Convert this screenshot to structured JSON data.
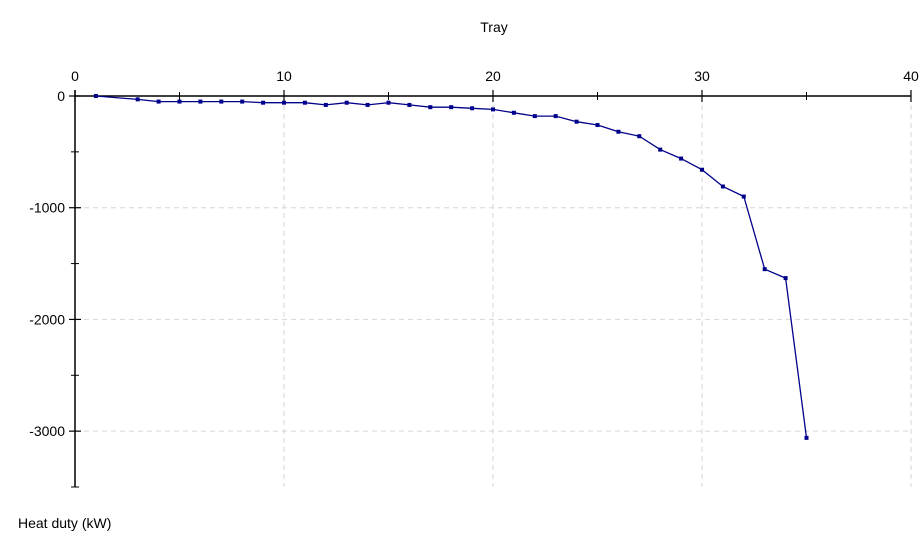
{
  "chart_data": {
    "type": "line",
    "xlabel": "Tray",
    "ylabel": "Heat duty (kW)",
    "xlim": [
      0,
      40
    ],
    "ylim": [
      -3500,
      0
    ],
    "x_ticks": [
      0,
      10,
      20,
      30,
      40
    ],
    "y_ticks": [
      0,
      -1000,
      -2000,
      -3000
    ],
    "x_axis_position": "top",
    "grid": true,
    "series": [
      {
        "color": "#00008B",
        "x": [
          1,
          3,
          4,
          5,
          6,
          7,
          8,
          9,
          10,
          11,
          12,
          13,
          14,
          15,
          16,
          17,
          18,
          19,
          20,
          21,
          22,
          23,
          24,
          25,
          26,
          27,
          28,
          29,
          30,
          31,
          32,
          33,
          34,
          35
        ],
        "y": [
          0,
          -30,
          -50,
          -50,
          -50,
          -50,
          -50,
          -60,
          -60,
          -60,
          -80,
          -60,
          -80,
          -60,
          -80,
          -100,
          -100,
          -110,
          -120,
          -150,
          -180,
          -180,
          -230,
          -260,
          -320,
          -360,
          -480,
          -560,
          -660,
          -810,
          -900,
          -1550,
          -1630,
          -3060
        ]
      }
    ]
  }
}
